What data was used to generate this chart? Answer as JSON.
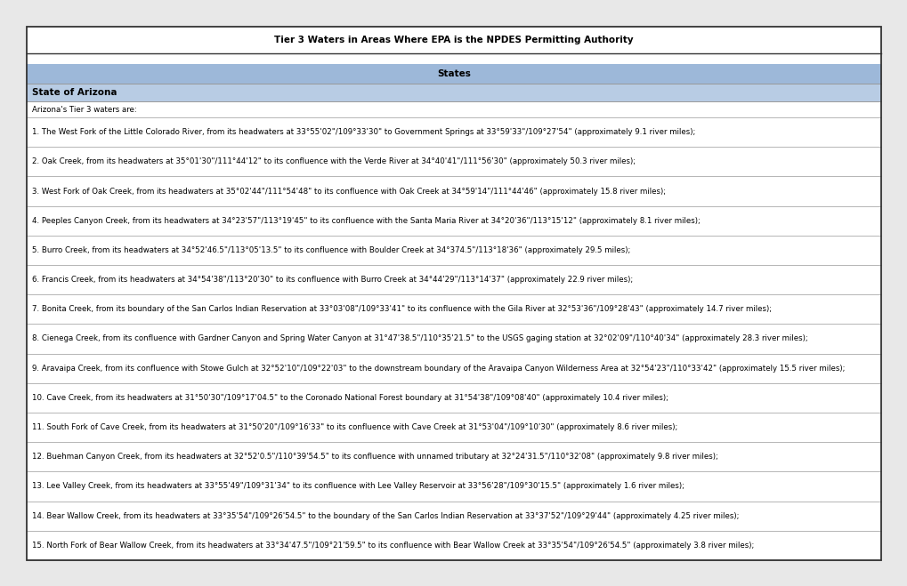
{
  "title": "Tier 3 Waters in Areas Where EPA is the NPDES Permitting Authority",
  "section_header": "States",
  "state_header": "State of Arizona",
  "intro_text": "Arizona's Tier 3 waters are:",
  "entries": [
    "1. The West Fork of the Little Colorado River, from its headwaters at 33°55'02\"/109°33'30\" to Government Springs at 33°59'33\"/109°27'54\" (approximately 9.1 river miles);",
    "2. Oak Creek, from its headwaters at 35°01'30\"/111°44'12\" to its confluence with the Verde River at 34°40'41\"/111°56'30\" (approximately 50.3 river miles);",
    "3. West Fork of Oak Creek, from its headwaters at 35°02'44\"/111°54'48\" to its confluence with Oak Creek at 34°59'14\"/111°44'46\" (approximately 15.8 river miles);",
    "4. Peeples Canyon Creek, from its headwaters at 34°23'57\"/113°19'45\" to its confluence with the Santa Maria River at 34°20'36\"/113°15'12\" (approximately 8.1 river miles);",
    "5. Burro Creek, from its headwaters at 34°52'46.5\"/113°05'13.5\" to its confluence with Boulder Creek at 34°374.5\"/113°18'36\" (approximately 29.5 miles);",
    "6. Francis Creek, from its headwaters at 34°54'38\"/113°20'30\" to its confluence with Burro Creek at 34°44'29\"/113°14'37\" (approximately 22.9 river miles);",
    "7. Bonita Creek, from its boundary of the San Carlos Indian Reservation at 33°03'08\"/109°33'41\" to its confluence with the Gila River at 32°53'36\"/109°28'43\" (approximately 14.7 river miles);",
    "8. Cienega Creek, from its confluence with Gardner Canyon and Spring Water Canyon at 31°47'38.5\"/110°35'21.5\" to the USGS gaging station at 32°02'09\"/110°40'34\" (approximately 28.3 river miles);",
    "9. Aravaipa Creek, from its confluence with Stowe Gulch at 32°52'10\"/109°22'03\" to the downstream boundary of the Aravaipa Canyon Wilderness Area at 32°54'23\"/110°33'42\" (approximately 15.5 river miles);",
    "10. Cave Creek, from its headwaters at 31°50'30\"/109°17'04.5\" to the Coronado National Forest boundary at 31°54'38\"/109°08'40\" (approximately 10.4 river miles);",
    "11. South Fork of Cave Creek, from its headwaters at 31°50'20\"/109°16'33\" to its confluence with Cave Creek at 31°53'04\"/109°10'30\" (approximately 8.6 river miles);",
    "12. Buehman Canyon Creek, from its headwaters at 32°52'0.5\"/110°39'54.5\" to its confluence with unnamed tributary at 32°24'31.5\"/110°32'08\" (approximately 9.8 river miles);",
    "13. Lee Valley Creek, from its headwaters at 33°55'49\"/109°31'34\" to its confluence with Lee Valley Reservoir at 33°56'28\"/109°30'15.5\" (approximately 1.6 river miles);",
    "14. Bear Wallow Creek, from its headwaters at 33°35'54\"/109°26'54.5\" to the boundary of the San Carlos Indian Reservation at 33°37'52\"/109°29'44\" (approximately 4.25 river miles);",
    "15. North Fork of Bear Wallow Creek, from its headwaters at 33°34'47.5\"/109°21'59.5\" to its confluence with Bear Wallow Creek at 33°35'54\"/109°26'54.5\" (approximately 3.8 river miles);"
  ],
  "fig_bg": "#e8e8e8",
  "table_bg": "#ffffff",
  "title_bg": "#ffffff",
  "section_header_bg": "#9db8d9",
  "state_header_bg": "#b8cce4",
  "outer_border": "#333333",
  "inner_border": "#999999",
  "title_fontsize": 7.5,
  "header_fontsize": 7.5,
  "text_fontsize": 6.2,
  "fig_width": 10.2,
  "fig_height": 6.59
}
